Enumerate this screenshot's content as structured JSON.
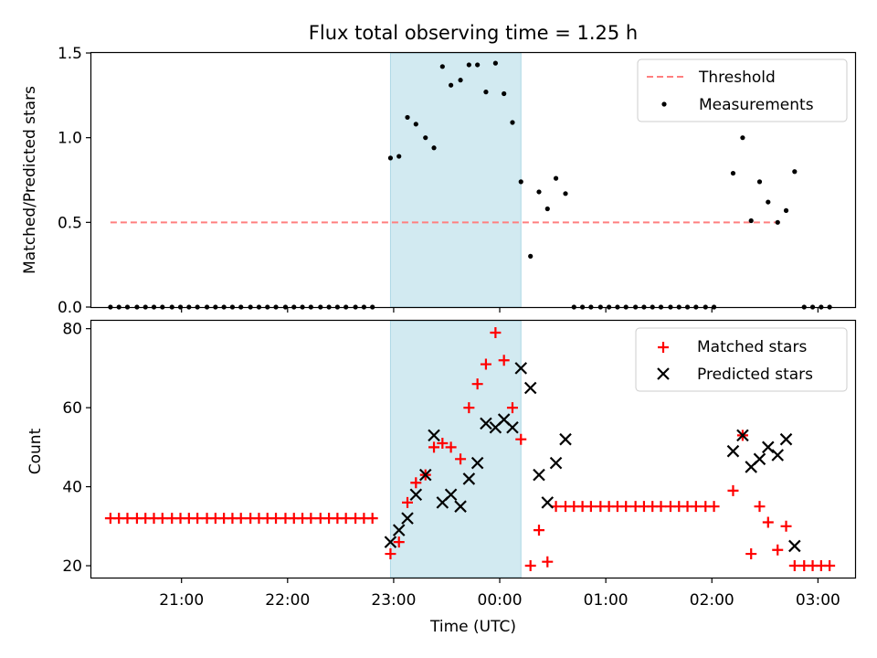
{
  "chart_data": {
    "title": "Flux total observing time = 1.25 h",
    "colors": {
      "threshold": "#ff7f7f",
      "measurement": "#000000",
      "matched": "#ff0000",
      "predicted": "#000000",
      "shade": "#add8e6"
    },
    "x_axis": {
      "label": "Time (UTC)",
      "unit": "hours since 20:00 UTC",
      "range": [
        0.15,
        7.35
      ],
      "ticks": [
        {
          "x": 1,
          "label": "21:00"
        },
        {
          "x": 2,
          "label": "22:00"
        },
        {
          "x": 3,
          "label": "23:00"
        },
        {
          "x": 4,
          "label": "00:00"
        },
        {
          "x": 5,
          "label": "01:00"
        },
        {
          "x": 6,
          "label": "02:00"
        },
        {
          "x": 7,
          "label": "03:00"
        }
      ]
    },
    "shaded_interval": [
      2.97,
      4.2
    ],
    "panels": [
      {
        "type": "scatter",
        "ylabel": "Matched/Predicted stars",
        "ylim": [
          0,
          1.5
        ],
        "yticks": [
          {
            "v": 0,
            "label": "0.0"
          },
          {
            "v": 0.5,
            "label": "0.5"
          },
          {
            "v": 1,
            "label": "1.0"
          },
          {
            "v": 1.5,
            "label": "1.5"
          }
        ],
        "legend": {
          "position": "top-right",
          "entries": [
            {
              "label": "Threshold",
              "marker": "dashed-line"
            },
            {
              "label": "Measurements",
              "marker": "dot"
            }
          ]
        },
        "threshold": {
          "name": "Threshold",
          "y": 0.5,
          "x_range": [
            0.33,
            6.67
          ]
        },
        "series": [
          {
            "name": "Measurements",
            "points": [
              [
                0.33,
                0
              ],
              [
                0.41,
                0
              ],
              [
                0.49,
                0
              ],
              [
                0.58,
                0
              ],
              [
                0.66,
                0
              ],
              [
                0.74,
                0
              ],
              [
                0.82,
                0
              ],
              [
                0.91,
                0
              ],
              [
                0.99,
                0
              ],
              [
                1.07,
                0
              ],
              [
                1.15,
                0
              ],
              [
                1.24,
                0
              ],
              [
                1.32,
                0
              ],
              [
                1.4,
                0
              ],
              [
                1.48,
                0
              ],
              [
                1.56,
                0
              ],
              [
                1.65,
                0
              ],
              [
                1.73,
                0
              ],
              [
                1.81,
                0
              ],
              [
                1.89,
                0
              ],
              [
                1.98,
                0
              ],
              [
                2.06,
                0
              ],
              [
                2.14,
                0
              ],
              [
                2.22,
                0
              ],
              [
                2.31,
                0
              ],
              [
                2.39,
                0
              ],
              [
                2.47,
                0
              ],
              [
                2.55,
                0
              ],
              [
                2.64,
                0
              ],
              [
                2.72,
                0
              ],
              [
                2.8,
                0
              ],
              [
                2.97,
                0.88
              ],
              [
                3.05,
                0.89
              ],
              [
                3.13,
                1.12
              ],
              [
                3.21,
                1.08
              ],
              [
                3.3,
                1.0
              ],
              [
                3.38,
                0.94
              ],
              [
                3.46,
                1.42
              ],
              [
                3.54,
                1.31
              ],
              [
                3.63,
                1.34
              ],
              [
                3.71,
                1.43
              ],
              [
                3.79,
                1.43
              ],
              [
                3.87,
                1.27
              ],
              [
                3.96,
                1.44
              ],
              [
                4.04,
                1.26
              ],
              [
                4.12,
                1.09
              ],
              [
                4.2,
                0.74
              ],
              [
                4.29,
                0.3
              ],
              [
                4.37,
                0.68
              ],
              [
                4.45,
                0.58
              ],
              [
                4.53,
                0.76
              ],
              [
                4.62,
                0.67
              ],
              [
                4.7,
                0
              ],
              [
                4.78,
                0
              ],
              [
                4.86,
                0
              ],
              [
                4.95,
                0
              ],
              [
                5.03,
                0
              ],
              [
                5.11,
                0
              ],
              [
                5.19,
                0
              ],
              [
                5.28,
                0
              ],
              [
                5.36,
                0
              ],
              [
                5.44,
                0
              ],
              [
                5.52,
                0
              ],
              [
                5.61,
                0
              ],
              [
                5.69,
                0
              ],
              [
                5.77,
                0
              ],
              [
                5.85,
                0
              ],
              [
                5.94,
                0
              ],
              [
                6.02,
                0
              ],
              [
                6.2,
                0.79
              ],
              [
                6.29,
                1.0
              ],
              [
                6.37,
                0.51
              ],
              [
                6.45,
                0.74
              ],
              [
                6.53,
                0.62
              ],
              [
                6.62,
                0.5
              ],
              [
                6.7,
                0.57
              ],
              [
                6.78,
                0.8
              ],
              [
                6.87,
                0
              ],
              [
                6.95,
                0
              ],
              [
                7.03,
                0
              ],
              [
                7.11,
                0
              ]
            ]
          }
        ]
      },
      {
        "type": "scatter",
        "ylabel": "Count",
        "ylim": [
          17,
          82
        ],
        "yticks": [
          {
            "v": 20,
            "label": "20"
          },
          {
            "v": 40,
            "label": "40"
          },
          {
            "v": 60,
            "label": "60"
          },
          {
            "v": 80,
            "label": "80"
          }
        ],
        "legend": {
          "position": "top-right",
          "entries": [
            {
              "label": "Matched stars",
              "marker": "plus"
            },
            {
              "label": "Predicted stars",
              "marker": "x"
            }
          ]
        },
        "series": [
          {
            "name": "Matched stars",
            "points": [
              [
                0.33,
                32
              ],
              [
                0.41,
                32
              ],
              [
                0.49,
                32
              ],
              [
                0.58,
                32
              ],
              [
                0.66,
                32
              ],
              [
                0.74,
                32
              ],
              [
                0.82,
                32
              ],
              [
                0.91,
                32
              ],
              [
                0.99,
                32
              ],
              [
                1.07,
                32
              ],
              [
                1.15,
                32
              ],
              [
                1.24,
                32
              ],
              [
                1.32,
                32
              ],
              [
                1.4,
                32
              ],
              [
                1.48,
                32
              ],
              [
                1.56,
                32
              ],
              [
                1.65,
                32
              ],
              [
                1.73,
                32
              ],
              [
                1.81,
                32
              ],
              [
                1.89,
                32
              ],
              [
                1.98,
                32
              ],
              [
                2.06,
                32
              ],
              [
                2.14,
                32
              ],
              [
                2.22,
                32
              ],
              [
                2.31,
                32
              ],
              [
                2.39,
                32
              ],
              [
                2.47,
                32
              ],
              [
                2.55,
                32
              ],
              [
                2.64,
                32
              ],
              [
                2.72,
                32
              ],
              [
                2.8,
                32
              ],
              [
                2.97,
                23
              ],
              [
                3.05,
                26
              ],
              [
                3.13,
                36
              ],
              [
                3.21,
                41
              ],
              [
                3.3,
                43
              ],
              [
                3.38,
                50
              ],
              [
                3.46,
                51
              ],
              [
                3.54,
                50
              ],
              [
                3.63,
                47
              ],
              [
                3.71,
                60
              ],
              [
                3.79,
                66
              ],
              [
                3.87,
                71
              ],
              [
                3.96,
                79
              ],
              [
                4.04,
                72
              ],
              [
                4.12,
                60
              ],
              [
                4.2,
                52
              ],
              [
                4.29,
                20
              ],
              [
                4.37,
                29
              ],
              [
                4.45,
                21
              ],
              [
                4.53,
                35
              ],
              [
                4.62,
                35
              ],
              [
                4.7,
                35
              ],
              [
                4.78,
                35
              ],
              [
                4.86,
                35
              ],
              [
                4.95,
                35
              ],
              [
                5.03,
                35
              ],
              [
                5.11,
                35
              ],
              [
                5.19,
                35
              ],
              [
                5.28,
                35
              ],
              [
                5.36,
                35
              ],
              [
                5.44,
                35
              ],
              [
                5.52,
                35
              ],
              [
                5.61,
                35
              ],
              [
                5.69,
                35
              ],
              [
                5.77,
                35
              ],
              [
                5.85,
                35
              ],
              [
                5.94,
                35
              ],
              [
                6.02,
                35
              ],
              [
                6.2,
                39
              ],
              [
                6.29,
                53
              ],
              [
                6.37,
                23
              ],
              [
                6.45,
                35
              ],
              [
                6.53,
                31
              ],
              [
                6.62,
                24
              ],
              [
                6.7,
                30
              ],
              [
                6.78,
                20
              ],
              [
                6.87,
                20
              ],
              [
                6.95,
                20
              ],
              [
                7.03,
                20
              ],
              [
                7.11,
                20
              ]
            ]
          },
          {
            "name": "Predicted stars",
            "points": [
              [
                2.97,
                26
              ],
              [
                3.05,
                29
              ],
              [
                3.13,
                32
              ],
              [
                3.21,
                38
              ],
              [
                3.3,
                43
              ],
              [
                3.38,
                53
              ],
              [
                3.46,
                36
              ],
              [
                3.54,
                38
              ],
              [
                3.63,
                35
              ],
              [
                3.71,
                42
              ],
              [
                3.79,
                46
              ],
              [
                3.87,
                56
              ],
              [
                3.96,
                55
              ],
              [
                4.04,
                57
              ],
              [
                4.12,
                55
              ],
              [
                4.2,
                70
              ],
              [
                4.29,
                65
              ],
              [
                4.37,
                43
              ],
              [
                4.45,
                36
              ],
              [
                4.53,
                46
              ],
              [
                4.62,
                52
              ],
              [
                6.2,
                49
              ],
              [
                6.29,
                53
              ],
              [
                6.37,
                45
              ],
              [
                6.45,
                47
              ],
              [
                6.53,
                50
              ],
              [
                6.62,
                48
              ],
              [
                6.7,
                52
              ],
              [
                6.78,
                25
              ]
            ]
          }
        ]
      }
    ]
  }
}
